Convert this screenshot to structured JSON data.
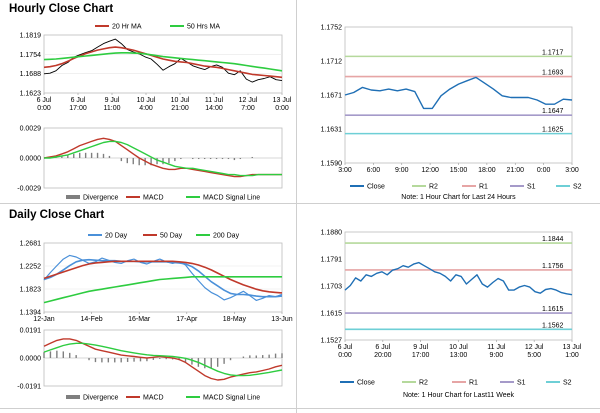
{
  "sections": {
    "hourly_title": "Hourly Close Chart",
    "daily_title": "Daily Close Chart"
  },
  "colors": {
    "close": "#1f6fb5",
    "ma_red": "#c0392b",
    "ma_green": "#2ecc40",
    "ma_blue": "#4a90d9",
    "r2": "#b5d99c",
    "r1": "#e6a5a5",
    "s1": "#a59ac9",
    "s2": "#6ecfd6",
    "divergence": "#7f7f7f",
    "price": "#000000"
  },
  "chart_data": [
    {
      "id": "hourly-price",
      "type": "line",
      "ylim": [
        1.1623,
        1.1819
      ],
      "yticks": [
        "1.1819",
        "1.1754",
        "1.1688",
        "1.1623"
      ],
      "xticks": [
        "6 Jul\n0:00",
        "6 Jul\n17:00",
        "9 Jul\n11:00",
        "10 Jul\n4:00",
        "10 Jul\n21:00",
        "11 Jul\n14:00",
        "12 Jul\n7:00",
        "13 Jul\n0:00"
      ],
      "legend": [
        "20 Hr MA",
        "50 Hrs MA"
      ],
      "price": [
        1.1688,
        1.169,
        1.1698,
        1.1716,
        1.1726,
        1.1744,
        1.1752,
        1.176,
        1.1766,
        1.1778,
        1.179,
        1.1798,
        1.1805,
        1.179,
        1.177,
        1.1762,
        1.1755,
        1.1745,
        1.1738,
        1.172,
        1.17,
        1.1712,
        1.1722,
        1.174,
        1.1728,
        1.1715,
        1.1708,
        1.1702,
        1.1712,
        1.1718,
        1.171,
        1.169,
        1.1685,
        1.1698,
        1.167,
        1.166,
        1.1668,
        1.1672,
        1.1678,
        1.1668,
        1.1665
      ],
      "ma20": [
        1.171,
        1.1712,
        1.1716,
        1.1722,
        1.173,
        1.174,
        1.1748,
        1.1756,
        1.1762,
        1.1768,
        1.1772,
        1.1776,
        1.1778,
        1.1776,
        1.1772,
        1.1768,
        1.1762,
        1.1756,
        1.175,
        1.1744,
        1.1738,
        1.1734,
        1.173,
        1.1728,
        1.1726,
        1.1722,
        1.1718,
        1.1714,
        1.1712,
        1.171,
        1.1706,
        1.1702,
        1.1698,
        1.1694,
        1.169,
        1.1686,
        1.1684,
        1.1682,
        1.168,
        1.1678,
        1.1676
      ],
      "ma50": [
        1.1736,
        1.1737,
        1.1738,
        1.174,
        1.1742,
        1.1744,
        1.1746,
        1.1748,
        1.175,
        1.1752,
        1.1754,
        1.1756,
        1.1758,
        1.1759,
        1.1759,
        1.1758,
        1.1757,
        1.1755,
        1.1752,
        1.1749,
        1.1746,
        1.1744,
        1.1742,
        1.174,
        1.1738,
        1.1736,
        1.1734,
        1.1732,
        1.173,
        1.1728,
        1.1726,
        1.1724,
        1.1722,
        1.1719,
        1.1716,
        1.1713,
        1.171,
        1.1707,
        1.1704,
        1.1701,
        1.1698
      ]
    },
    {
      "id": "hourly-macd",
      "type": "bar",
      "ylim": [
        -0.0029,
        0.0029
      ],
      "yticks": [
        "0.0029",
        "0.0000",
        "-0.0029"
      ],
      "legend": [
        "Divergence",
        "MACD",
        "MACD Signal Line"
      ],
      "macd": [
        0.0,
        0.0001,
        0.0002,
        0.0004,
        0.0006,
        0.0009,
        0.0012,
        0.0014,
        0.0016,
        0.0018,
        0.0019,
        0.0018,
        0.0016,
        0.0012,
        0.0008,
        0.0004,
        0.0,
        -0.0003,
        -0.0006,
        -0.0008,
        -0.001,
        -0.0011,
        -0.0011,
        -0.001,
        -0.001,
        -0.0011,
        -0.0012,
        -0.0013,
        -0.0014,
        -0.0015,
        -0.0016,
        -0.0017,
        -0.0018,
        -0.0018,
        -0.0017,
        -0.0016,
        -0.0016,
        -0.0016,
        -0.0016,
        -0.0016,
        -0.0016
      ],
      "signal": [
        0.0,
        0.0,
        0.0001,
        0.0002,
        0.0003,
        0.0005,
        0.0007,
        0.0009,
        0.0011,
        0.0013,
        0.0015,
        0.0016,
        0.0016,
        0.0015,
        0.0013,
        0.001,
        0.0007,
        0.0004,
        0.0001,
        -0.0002,
        -0.0004,
        -0.0006,
        -0.0008,
        -0.0009,
        -0.001,
        -0.001,
        -0.0011,
        -0.0012,
        -0.0013,
        -0.0014,
        -0.0015,
        -0.0016,
        -0.0016,
        -0.0017,
        -0.0017,
        -0.0017,
        -0.0016,
        -0.0016,
        -0.0016,
        -0.0016,
        -0.0016
      ]
    },
    {
      "id": "hourly-24h",
      "type": "line",
      "ylim": [
        1.159,
        1.1752
      ],
      "yticks": [
        "1.1752",
        "1.1712",
        "1.1671",
        "1.1631",
        "1.1590"
      ],
      "xticks": [
        "3:00",
        "6:00",
        "9:00",
        "12:00",
        "15:00",
        "18:00",
        "21:00",
        "0:00",
        "3:00"
      ],
      "levels": [
        {
          "name": "R2",
          "value": 1.1717,
          "label": "1.1717"
        },
        {
          "name": "R1",
          "value": 1.1693,
          "label": "1.1693"
        },
        {
          "name": "S1",
          "value": 1.1647,
          "label": "1.1647"
        },
        {
          "name": "S2",
          "value": 1.1625,
          "label": "1.1625"
        }
      ],
      "close": [
        1.1671,
        1.1674,
        1.168,
        1.1677,
        1.1676,
        1.1678,
        1.1676,
        1.1678,
        1.1675,
        1.1655,
        1.1655,
        1.167,
        1.1678,
        1.1684,
        1.1688,
        1.1692,
        1.1685,
        1.1678,
        1.167,
        1.1668,
        1.1668,
        1.1668,
        1.1665,
        1.166,
        1.166,
        1.1666,
        1.1665
      ],
      "legend": [
        "Close",
        "R2",
        "R1",
        "S1",
        "S2"
      ],
      "note": "Note: 1 Hour Chart for Last 24 Hours"
    },
    {
      "id": "daily-price",
      "type": "line",
      "ylim": [
        1.1394,
        1.2681
      ],
      "yticks": [
        "1.2681",
        "1.2252",
        "1.1823",
        "1.1394"
      ],
      "xticks": [
        "12-Jan",
        "14-Feb",
        "16-Mar",
        "17-Apr",
        "18-May",
        "13-Jun"
      ],
      "legend": [
        "20 Day",
        "50 Day",
        "200 Day"
      ],
      "price": [
        1.199,
        1.213,
        1.226,
        1.238,
        1.245,
        1.242,
        1.236,
        1.23,
        1.233,
        1.24,
        1.236,
        1.232,
        1.23,
        1.235,
        1.238,
        1.232,
        1.229,
        1.234,
        1.238,
        1.233,
        1.23,
        1.233,
        1.227,
        1.212,
        1.198,
        1.185,
        1.176,
        1.17,
        1.162,
        1.166,
        1.172,
        1.178,
        1.17,
        1.161,
        1.165,
        1.17,
        1.168,
        1.172
      ],
      "ma20": [
        1.2,
        1.204,
        1.21,
        1.218,
        1.226,
        1.233,
        1.236,
        1.237,
        1.236,
        1.235,
        1.235,
        1.235,
        1.234,
        1.234,
        1.234,
        1.233,
        1.233,
        1.233,
        1.233,
        1.233,
        1.232,
        1.231,
        1.229,
        1.224,
        1.216,
        1.206,
        1.196,
        1.188,
        1.18,
        1.174,
        1.172,
        1.172,
        1.171,
        1.169,
        1.168,
        1.168,
        1.168,
        1.169
      ],
      "ma50": [
        1.202,
        1.206,
        1.21,
        1.214,
        1.218,
        1.222,
        1.226,
        1.229,
        1.231,
        1.232,
        1.233,
        1.234,
        1.234,
        1.234,
        1.234,
        1.234,
        1.234,
        1.234,
        1.234,
        1.234,
        1.234,
        1.233,
        1.232,
        1.23,
        1.227,
        1.223,
        1.218,
        1.212,
        1.206,
        1.2,
        1.195,
        1.19,
        1.186,
        1.182,
        1.179,
        1.177,
        1.176,
        1.175
      ],
      "ma200": [
        1.157,
        1.16,
        1.163,
        1.166,
        1.169,
        1.172,
        1.175,
        1.178,
        1.18,
        1.182,
        1.184,
        1.186,
        1.188,
        1.19,
        1.192,
        1.194,
        1.196,
        1.198,
        1.2,
        1.201,
        1.202,
        1.203,
        1.204,
        1.205,
        1.205,
        1.205,
        1.205,
        1.205,
        1.205,
        1.205,
        1.205,
        1.205,
        1.205,
        1.205,
        1.205,
        1.205,
        1.205,
        1.205
      ]
    },
    {
      "id": "daily-macd",
      "type": "bar",
      "ylim": [
        -0.0191,
        0.0191
      ],
      "yticks": [
        "0.0191",
        "0.0000",
        "-0.0191"
      ],
      "legend": [
        "Divergence",
        "MACD",
        "MACD Signal Line"
      ],
      "macd": [
        0.008,
        0.01,
        0.012,
        0.013,
        0.013,
        0.012,
        0.01,
        0.008,
        0.006,
        0.005,
        0.004,
        0.003,
        0.002,
        0.0015,
        0.001,
        0.0005,
        0.0,
        0.0005,
        0.001,
        0.0005,
        0.0,
        -0.001,
        -0.003,
        -0.006,
        -0.009,
        -0.012,
        -0.014,
        -0.015,
        -0.0145,
        -0.013,
        -0.012,
        -0.011,
        -0.01,
        -0.0095,
        -0.0085,
        -0.0075,
        -0.006,
        -0.005
      ],
      "signal": [
        0.004,
        0.0055,
        0.007,
        0.0085,
        0.0095,
        0.01,
        0.01,
        0.0095,
        0.0088,
        0.008,
        0.007,
        0.006,
        0.005,
        0.0042,
        0.0035,
        0.0028,
        0.0022,
        0.0018,
        0.0016,
        0.0013,
        0.001,
        0.0005,
        -0.0002,
        -0.0015,
        -0.003,
        -0.005,
        -0.007,
        -0.009,
        -0.0105,
        -0.0115,
        -0.012,
        -0.012,
        -0.0118,
        -0.0112,
        -0.0105,
        -0.0098,
        -0.009,
        -0.0082
      ]
    },
    {
      "id": "daily-week",
      "type": "line",
      "ylim": [
        1.1527,
        1.188
      ],
      "yticks": [
        "1.1880",
        "1.1791",
        "1.1703",
        "1.1615",
        "1.1527"
      ],
      "xticks": [
        "6 Jul\n0:00",
        "6 Jul\n20:00",
        "9 Jul\n17:00",
        "10 Jul\n13:00",
        "11 Jul\n9:00",
        "12 Jul\n5:00",
        "13 Jul\n1:00"
      ],
      "levels": [
        {
          "name": "R2",
          "value": 1.1844,
          "label": "1.1844"
        },
        {
          "name": "R1",
          "value": 1.1756,
          "label": "1.1756"
        },
        {
          "name": "S1",
          "value": 1.1615,
          "label": "1.1615"
        },
        {
          "name": "S2",
          "value": 1.1562,
          "label": "1.1562"
        }
      ],
      "close": [
        1.169,
        1.1705,
        1.173,
        1.172,
        1.174,
        1.1735,
        1.1745,
        1.175,
        1.174,
        1.1755,
        1.176,
        1.177,
        1.1765,
        1.1775,
        1.178,
        1.177,
        1.176,
        1.175,
        1.1745,
        1.1735,
        1.172,
        1.174,
        1.1735,
        1.171,
        1.1725,
        1.174,
        1.171,
        1.17,
        1.1715,
        1.1728,
        1.172,
        1.169,
        1.169,
        1.17,
        1.1705,
        1.17,
        1.1685,
        1.168,
        1.1692,
        1.1695,
        1.169,
        1.1682,
        1.1678,
        1.1675
      ],
      "legend": [
        "Close",
        "R2",
        "R1",
        "S1",
        "S2"
      ],
      "note": "Note: 1 Hour Chart for Last11 Week"
    }
  ]
}
